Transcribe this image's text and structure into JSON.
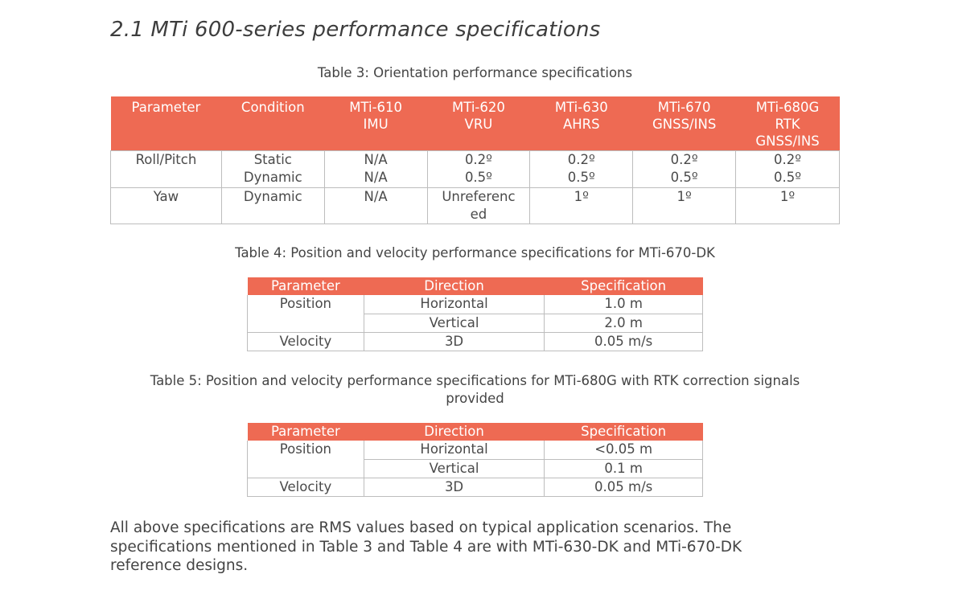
{
  "section_title": "2.1  MTi 600-series performance specifications",
  "table3": {
    "caption": "Table 3: Orientation performance specifications",
    "headers": [
      [
        "Parameter"
      ],
      [
        "Condition"
      ],
      [
        "MTi-610",
        "IMU"
      ],
      [
        "MTi-620",
        "VRU"
      ],
      [
        "MTi-630",
        "AHRS"
      ],
      [
        "MTi-670",
        "GNSS/INS"
      ],
      [
        "MTi-680G",
        "RTK",
        "GNSS/INS"
      ]
    ],
    "rows": [
      {
        "parameter": "Roll/Pitch",
        "conditions": [
          "Static",
          "Dynamic"
        ],
        "values": [
          [
            "N/A",
            "N/A"
          ],
          [
            "0.2º",
            "0.5º"
          ],
          [
            "0.2º",
            "0.5º"
          ],
          [
            "0.2º",
            "0.5º"
          ],
          [
            "0.2º",
            "0.5º"
          ]
        ]
      },
      {
        "parameter": "Yaw",
        "conditions": [
          "Dynamic"
        ],
        "values": [
          [
            "N/A"
          ],
          [
            "Unreferenc\ned"
          ],
          [
            "1º"
          ],
          [
            "1º"
          ],
          [
            "1º"
          ]
        ]
      }
    ]
  },
  "table4": {
    "caption": "Table 4: Position and velocity performance specifications for MTi-670-DK",
    "headers": [
      "Parameter",
      "Direction",
      "Specification"
    ],
    "rows": [
      {
        "parameter": "Position",
        "direction": "Horizontal",
        "spec": "1.0 m"
      },
      {
        "parameter": "",
        "direction": "Vertical",
        "spec": "2.0 m"
      },
      {
        "parameter": "Velocity",
        "direction": "3D",
        "spec": "0.05 m/s"
      }
    ]
  },
  "table5": {
    "caption_line1": "Table 5: Position and velocity performance specifications for MTi-680G with RTK correction signals",
    "caption_line2": "provided",
    "headers": [
      "Parameter",
      "Direction",
      "Specification"
    ],
    "rows": [
      {
        "parameter": "Position",
        "direction": "Horizontal",
        "spec": "<0.05 m"
      },
      {
        "parameter": "",
        "direction": "Vertical",
        "spec": "0.1 m"
      },
      {
        "parameter": "Velocity",
        "direction": "3D",
        "spec": "0.05 m/s"
      }
    ]
  },
  "footnote": [
    "All above specifications are RMS values based on typical application scenarios. The",
    "specifications mentioned in Table 3 and Table 4 are with MTi-630-DK and MTi-670-DK",
    "reference designs."
  ],
  "colors": {
    "header_bg": "#ee6a53",
    "header_text": "#ffffff",
    "border": "#bdbdbd",
    "text": "#4a4a4a"
  }
}
